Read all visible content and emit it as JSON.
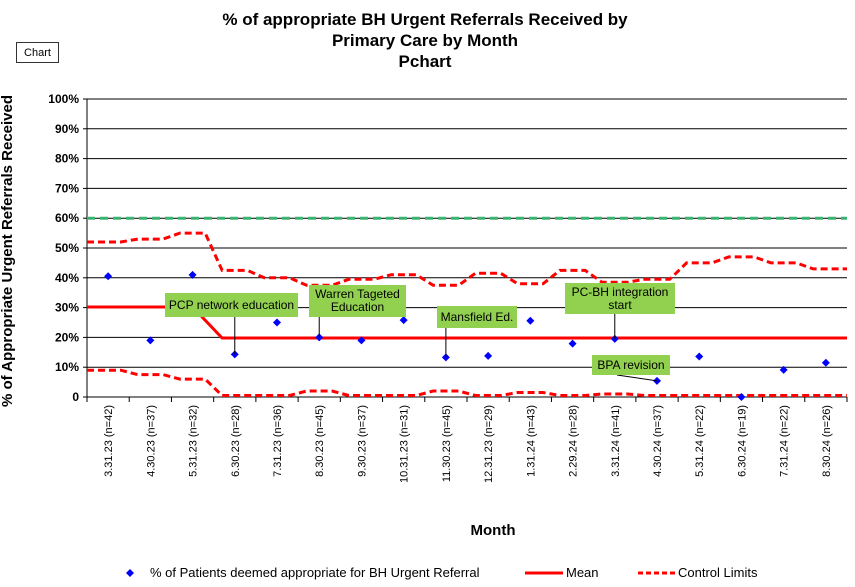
{
  "chart_tag": "Chart",
  "chart_data": {
    "type": "line",
    "title_lines": [
      "% of appropriate BH Urgent Referrals Received by",
      "Primary Care by Month",
      "Pchart"
    ],
    "xlabel": "Month",
    "ylabel": "% of Appropriate Urgent Referrals Received",
    "ylim": [
      0,
      100
    ],
    "y_ticks": [
      "0",
      "10%",
      "20%",
      "30%",
      "40%",
      "50%",
      "60%",
      "70%",
      "80%",
      "90%",
      "100%"
    ],
    "categories": [
      "3.31.23 (n=42)",
      "4.30.23 (n=37)",
      "5.31.23 (n=32)",
      "6.30.23 (n=28)",
      "7.31.23 (n=36)",
      "8.30.23 (n=45)",
      "9.30.23 (n=37)",
      "10.31.23 (n=31)",
      "11.30.23 (n=45)",
      "12.31.23 (n=29)",
      "1.31.24 (n=43)",
      "2.29.24 (n=28)",
      "3.31.24 (n=41)",
      "4.30.24 (n=37)",
      "5.31.24 (n=22)",
      "6.30.24 (n=19)",
      "7.31.24 (n=22)",
      "8.30.24 (n=26)"
    ],
    "grid": true,
    "target_line": {
      "value": 60,
      "color": "#3cb371"
    },
    "series": [
      {
        "name": "% of Patients deemed appropriate for BH Urgent Referral",
        "style": "points",
        "color": "#0000ff",
        "values": [
          40.5,
          19,
          41,
          14.3,
          25,
          20,
          19,
          25.8,
          13.3,
          13.8,
          25.6,
          17.9,
          19.5,
          5.4,
          13.6,
          0,
          9.1,
          11.5
        ]
      },
      {
        "name": "Mean",
        "style": "line",
        "color": "#ff0000",
        "values": [
          30.2,
          30.2,
          30.2,
          19.8,
          19.8,
          19.8,
          19.8,
          19.8,
          19.8,
          19.8,
          19.8,
          19.8,
          19.8,
          19.8,
          19.8,
          19.8,
          19.8,
          19.8
        ]
      },
      {
        "name": "Control Limits",
        "style": "dashed-step",
        "color": "#ff0000",
        "upper": [
          52,
          53,
          55,
          42.5,
          40,
          37.5,
          39.5,
          41,
          37.5,
          41.5,
          38,
          42.5,
          38.5,
          39.5,
          45,
          47,
          45,
          43
        ],
        "lower": [
          9,
          7.5,
          6,
          0.5,
          0.5,
          2,
          0.5,
          0.5,
          2,
          0.5,
          1.5,
          0.5,
          1,
          0.5,
          0.5,
          0.5,
          0.5,
          0.5
        ]
      }
    ],
    "annotations": [
      {
        "text": "PCP network education",
        "box_color": "#92d050",
        "point_index": 3
      },
      {
        "text": "Warren Tageted Education",
        "box_color": "#92d050",
        "point_index": 5
      },
      {
        "text": "Mansfield Ed.",
        "box_color": "#92d050",
        "point_index": 8
      },
      {
        "text": "PC-BH integration start",
        "box_color": "#92d050",
        "point_index": 12
      },
      {
        "text": "BPA revision",
        "box_color": "#92d050",
        "point_index": 13
      }
    ],
    "legend_position": "bottom"
  }
}
